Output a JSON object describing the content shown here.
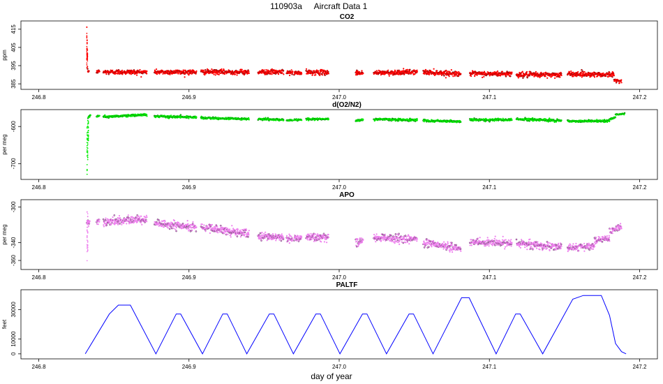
{
  "title": {
    "flight_id": "110903a",
    "text": "Aircraft Data 1"
  },
  "x_axis_label": "day of year",
  "x_ticks": [
    "246.8",
    "246.9",
    "247.0",
    "247.1",
    "247.2"
  ],
  "colors": {
    "co2": "#ff0000",
    "o2n2": "#00ee00",
    "apo": "#ee82ee",
    "paltf": "#0000ff",
    "dots_outline": "#000000"
  },
  "chart_data": [
    {
      "type": "scatter",
      "title": "CO2",
      "ylabel": "ppm",
      "xlim": [
        246.79,
        247.21
      ],
      "ylim": [
        383.5,
        418
      ],
      "y_ticks": [
        "385",
        "395",
        "405",
        "415"
      ],
      "series_color": "#ff0000",
      "segments": [
        {
          "x": [
            246.8325,
            246.8335
          ],
          "y": [
            392,
            392
          ],
          "noise": 0.8
        },
        {
          "x": [
            246.8385,
            246.8405
          ],
          "y": [
            391.5,
            392
          ],
          "noise": 0.8
        },
        {
          "x": [
            246.843,
            246.872
          ],
          "y": [
            391.5,
            391.5
          ],
          "noise": 1.2
        },
        {
          "x": [
            246.877,
            246.905
          ],
          "y": [
            391.5,
            391.5
          ],
          "noise": 1.2
        },
        {
          "x": [
            246.908,
            246.94
          ],
          "y": [
            391.5,
            391.5
          ],
          "noise": 1.2
        },
        {
          "x": [
            246.946,
            246.963
          ],
          "y": [
            391.5,
            391.5
          ],
          "noise": 1.2
        },
        {
          "x": [
            246.965,
            246.969
          ],
          "y": [
            391.2,
            391.2
          ],
          "noise": 1.0
        },
        {
          "x": [
            246.97,
            246.975
          ],
          "y": [
            391,
            391
          ],
          "noise": 1.2
        },
        {
          "x": [
            246.978,
            246.993
          ],
          "y": [
            391.3,
            391.3
          ],
          "noise": 1.2
        },
        {
          "x": [
            247.011,
            247.016
          ],
          "y": [
            391,
            391
          ],
          "noise": 1.2
        },
        {
          "x": [
            247.023,
            247.052
          ],
          "y": [
            391,
            391.5
          ],
          "noise": 1.2
        },
        {
          "x": [
            247.056,
            247.081
          ],
          "y": [
            391.5,
            390.5
          ],
          "noise": 1.2
        },
        {
          "x": [
            247.087,
            247.115
          ],
          "y": [
            390.5,
            390.5
          ],
          "noise": 1.2
        },
        {
          "x": [
            247.118,
            247.148
          ],
          "y": [
            390,
            390
          ],
          "noise": 1.3
        },
        {
          "x": [
            247.152,
            247.183
          ],
          "y": [
            390.5,
            390
          ],
          "noise": 1.2
        },
        {
          "x": [
            247.183,
            247.188
          ],
          "y": [
            387,
            386.5
          ],
          "noise": 0.8
        }
      ],
      "spikes": [
        {
          "x": 246.832,
          "y": [
            393,
            417.5
          ]
        },
        {
          "x": 246.8322,
          "y": [
            398,
            410
          ]
        },
        {
          "x": 246.8324,
          "y": [
            394,
            404
          ]
        }
      ]
    },
    {
      "type": "scatter",
      "title": "d(O2/N2)",
      "ylabel": "per meg",
      "xlim": [
        246.79,
        247.21
      ],
      "ylim": [
        -735,
        -562
      ],
      "y_ticks": [
        "-700",
        "-600"
      ],
      "series_color": "#00ee00",
      "segments": [
        {
          "x": [
            246.8328,
            246.8345
          ],
          "y": [
            -575,
            -570
          ],
          "noise": 3
        },
        {
          "x": [
            246.8385,
            246.8405
          ],
          "y": [
            -573,
            -571
          ],
          "noise": 2
        },
        {
          "x": [
            246.843,
            246.872
          ],
          "y": [
            -574,
            -568
          ],
          "noise": 2.5
        },
        {
          "x": [
            246.877,
            246.905
          ],
          "y": [
            -573,
            -575
          ],
          "noise": 2.5
        },
        {
          "x": [
            246.908,
            246.94
          ],
          "y": [
            -577,
            -580
          ],
          "noise": 2.5
        },
        {
          "x": [
            246.946,
            246.963
          ],
          "y": [
            -580,
            -582
          ],
          "noise": 2.5
        },
        {
          "x": [
            246.965,
            246.969
          ],
          "y": [
            -583,
            -583
          ],
          "noise": 2
        },
        {
          "x": [
            246.97,
            246.975
          ],
          "y": [
            -582,
            -582
          ],
          "noise": 2
        },
        {
          "x": [
            246.978,
            246.993
          ],
          "y": [
            -580,
            -580
          ],
          "noise": 2.5
        },
        {
          "x": [
            247.011,
            247.016
          ],
          "y": [
            -584,
            -582
          ],
          "noise": 3
        },
        {
          "x": [
            247.023,
            247.052
          ],
          "y": [
            -580,
            -583
          ],
          "noise": 3
        },
        {
          "x": [
            247.056,
            247.081
          ],
          "y": [
            -584,
            -587
          ],
          "noise": 3
        },
        {
          "x": [
            247.087,
            247.115
          ],
          "y": [
            -582,
            -582
          ],
          "noise": 3
        },
        {
          "x": [
            247.118,
            247.148
          ],
          "y": [
            -580,
            -584
          ],
          "noise": 3
        },
        {
          "x": [
            247.152,
            247.18
          ],
          "y": [
            -586,
            -585
          ],
          "noise": 2.5
        },
        {
          "x": [
            247.18,
            247.184
          ],
          "y": [
            -580,
            -575
          ],
          "noise": 2
        },
        {
          "x": [
            247.184,
            247.19
          ],
          "y": [
            -568,
            -566
          ],
          "noise": 2
        }
      ],
      "spikes": [
        {
          "x": 246.8322,
          "y": [
            -732,
            -600
          ]
        },
        {
          "x": 246.8326,
          "y": [
            -700,
            -582
          ]
        },
        {
          "x": 246.833,
          "y": [
            -640,
            -575
          ]
        }
      ]
    },
    {
      "type": "scatter",
      "title": "APO",
      "ylabel": "per meg",
      "xlim": [
        246.79,
        247.21
      ],
      "ylim": [
        -367,
        -295
      ],
      "y_ticks": [
        "-360",
        "-340",
        "-300"
      ],
      "series_color": "#ee82ee",
      "segments": [
        {
          "x": [
            246.832,
            246.834
          ],
          "y": [
            -320,
            -318
          ],
          "noise": 4
        },
        {
          "x": [
            246.8385,
            246.8405
          ],
          "y": [
            -318,
            -316
          ],
          "noise": 3
        },
        {
          "x": [
            246.843,
            246.872
          ],
          "y": [
            -317,
            -313
          ],
          "noise": 4
        },
        {
          "x": [
            246.877,
            246.905
          ],
          "y": [
            -318,
            -323
          ],
          "noise": 4
        },
        {
          "x": [
            246.908,
            246.94
          ],
          "y": [
            -322,
            -330
          ],
          "noise": 4
        },
        {
          "x": [
            246.946,
            246.963
          ],
          "y": [
            -333,
            -335
          ],
          "noise": 4
        },
        {
          "x": [
            246.965,
            246.969
          ],
          "y": [
            -336,
            -336
          ],
          "noise": 4
        },
        {
          "x": [
            246.97,
            246.975
          ],
          "y": [
            -335,
            -335
          ],
          "noise": 4
        },
        {
          "x": [
            246.978,
            246.993
          ],
          "y": [
            -334,
            -334
          ],
          "noise": 4
        },
        {
          "x": [
            247.011,
            247.016
          ],
          "y": [
            -340,
            -338
          ],
          "noise": 4
        },
        {
          "x": [
            247.023,
            247.052
          ],
          "y": [
            -335,
            -336
          ],
          "noise": 4
        },
        {
          "x": [
            247.056,
            247.081
          ],
          "y": [
            -340,
            -347
          ],
          "noise": 4
        },
        {
          "x": [
            247.087,
            247.115
          ],
          "y": [
            -340,
            -340
          ],
          "noise": 4
        },
        {
          "x": [
            247.118,
            247.148
          ],
          "y": [
            -341,
            -345
          ],
          "noise": 4
        },
        {
          "x": [
            247.152,
            247.17
          ],
          "y": [
            -346,
            -344
          ],
          "noise": 3.5
        },
        {
          "x": [
            247.17,
            247.18
          ],
          "y": [
            -338,
            -335
          ],
          "noise": 3.5
        },
        {
          "x": [
            247.18,
            247.188
          ],
          "y": [
            -328,
            -322
          ],
          "noise": 3
        }
      ],
      "spikes": [
        {
          "x": 246.8322,
          "y": [
            -364,
            -300
          ]
        },
        {
          "x": 246.8326,
          "y": [
            -350,
            -305
          ]
        }
      ]
    },
    {
      "type": "line",
      "title": "PALTF",
      "ylabel": "feet",
      "xlim": [
        246.79,
        247.21
      ],
      "ylim": [
        -1500,
        41500
      ],
      "y_ticks": [
        "0",
        "10000",
        "30000"
      ],
      "series_color": "#0000ff",
      "x": [
        246.831,
        246.847,
        246.853,
        246.861,
        246.878,
        246.8915,
        246.8945,
        246.909,
        246.9225,
        246.9255,
        246.9385,
        246.9535,
        246.9565,
        246.9695,
        246.9845,
        246.9875,
        247.0005,
        247.0155,
        247.0185,
        247.0315,
        247.0465,
        247.0495,
        247.0625,
        247.0815,
        247.0865,
        247.1045,
        247.1175,
        247.1205,
        247.1355,
        247.1555,
        247.1625,
        247.1745,
        247.18,
        247.184,
        247.188,
        247.191
      ],
      "y": [
        0,
        27000,
        33000,
        33000,
        0,
        27000,
        27000,
        0,
        27000,
        27000,
        0,
        27000,
        27000,
        0,
        27000,
        27000,
        0,
        27000,
        27000,
        0,
        27000,
        27000,
        0,
        38000,
        38000,
        0,
        27000,
        27000,
        0,
        37000,
        39500,
        39500,
        26000,
        7000,
        1500,
        0
      ]
    }
  ]
}
